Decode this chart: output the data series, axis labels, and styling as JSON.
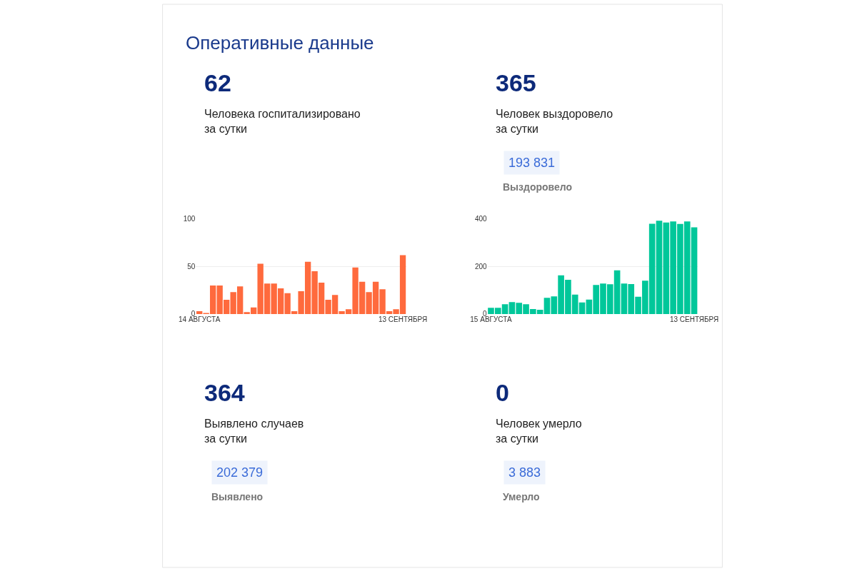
{
  "chart_data": [
    {
      "type": "other",
      "title": "Оперативные данные"
    },
    {
      "type": "bar",
      "title": "62",
      "subtitle": "Человека госпитализировано\nза сутки",
      "categories": [
        "14 АВГУСТА",
        null,
        null,
        null,
        null,
        null,
        null,
        null,
        null,
        null,
        null,
        null,
        null,
        null,
        null,
        null,
        null,
        null,
        null,
        null,
        null,
        null,
        null,
        null,
        null,
        null,
        null,
        null,
        null,
        null,
        "13 СЕНТЯБРЯ"
      ],
      "values": [
        3,
        1,
        30,
        30,
        15,
        23,
        29,
        2,
        7,
        53,
        32,
        32,
        27,
        22,
        3,
        24,
        55,
        45,
        33,
        15,
        20,
        3,
        5,
        49,
        34,
        23,
        34,
        26,
        3,
        5,
        62
      ],
      "color": "#ff6a3d",
      "ylim": [
        0,
        100
      ],
      "yticks": [
        0,
        50,
        100
      ],
      "grid": "y"
    },
    {
      "type": "bar",
      "title": "365",
      "subtitle": "Человек выздоровело\nза сутки",
      "annotations": [
        "193 831",
        "Выздоровело"
      ],
      "categories": [
        "15 АВГУСТА",
        null,
        null,
        null,
        null,
        null,
        null,
        null,
        null,
        null,
        null,
        null,
        null,
        null,
        null,
        null,
        null,
        null,
        null,
        null,
        null,
        null,
        null,
        null,
        null,
        null,
        null,
        null,
        null,
        "13 СЕНТЯБРЯ"
      ],
      "values": [
        26,
        26,
        41,
        50,
        47,
        41,
        21,
        18,
        68,
        74,
        163,
        144,
        82,
        49,
        61,
        122,
        128,
        125,
        184,
        128,
        126,
        73,
        140,
        380,
        393,
        385,
        390,
        379,
        390,
        365
      ],
      "color": "#00c79a",
      "ylim": [
        0,
        400
      ],
      "yticks": [
        0,
        200,
        400
      ],
      "grid": "y"
    },
    {
      "type": "other",
      "title": "364",
      "subtitle": "Выявлено случаев\nза сутки",
      "annotations": [
        "202 379",
        "Выявлено"
      ]
    },
    {
      "type": "other",
      "title": "0",
      "subtitle": "Человек умерло\nза сутки",
      "annotations": [
        "3 883",
        "Умерло"
      ]
    }
  ]
}
